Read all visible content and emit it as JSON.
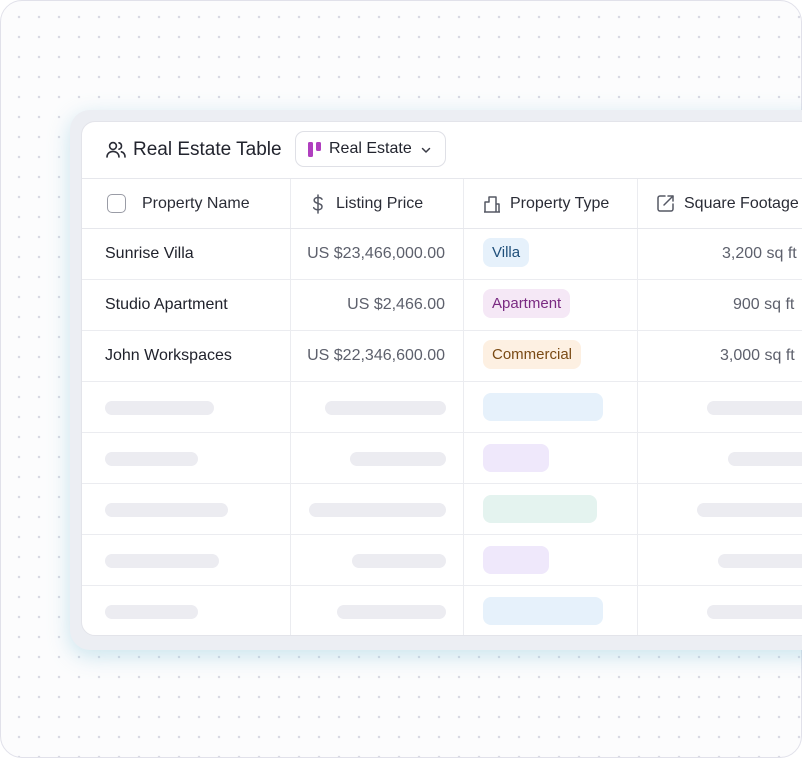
{
  "toolbar": {
    "title": "Real Estate Table",
    "title_icon": "users-icon",
    "dropdown_label": "Real Estate",
    "dropdown_icon": "kanban-icon"
  },
  "columns": [
    {
      "label": "Property Name",
      "icon": "checkbox"
    },
    {
      "label": "Listing Price",
      "icon": "dollar-icon"
    },
    {
      "label": "Property Type",
      "icon": "building-icon"
    },
    {
      "label": "Square Footage",
      "icon": "edit-box-icon"
    }
  ],
  "rows": [
    {
      "name": "Sunrise Villa",
      "price": "US $23,466,000.00",
      "type": "Villa",
      "sqft": "3,200 sq ft"
    },
    {
      "name": "Studio Apartment",
      "price": "US $2,466.00",
      "type": "Apartment",
      "sqft": "900 sq ft"
    },
    {
      "name": "John Workspaces",
      "price": "US $22,346,600.00",
      "type": "Commercial",
      "sqft": "3,000 sq ft"
    }
  ],
  "colors": {
    "villa_bg": "#e6f1fb",
    "villa_fg": "#1f4f7a",
    "apartment_bg": "#f5e8f6",
    "apartment_fg": "#7a2a82",
    "commercial_bg": "#fdf0e2",
    "commercial_fg": "#7a4a14",
    "skeleton": "#ececf1",
    "skel_blue": "#e6f1fb",
    "skel_purple": "#efe8fb",
    "skel_teal": "#e4f3ef"
  }
}
